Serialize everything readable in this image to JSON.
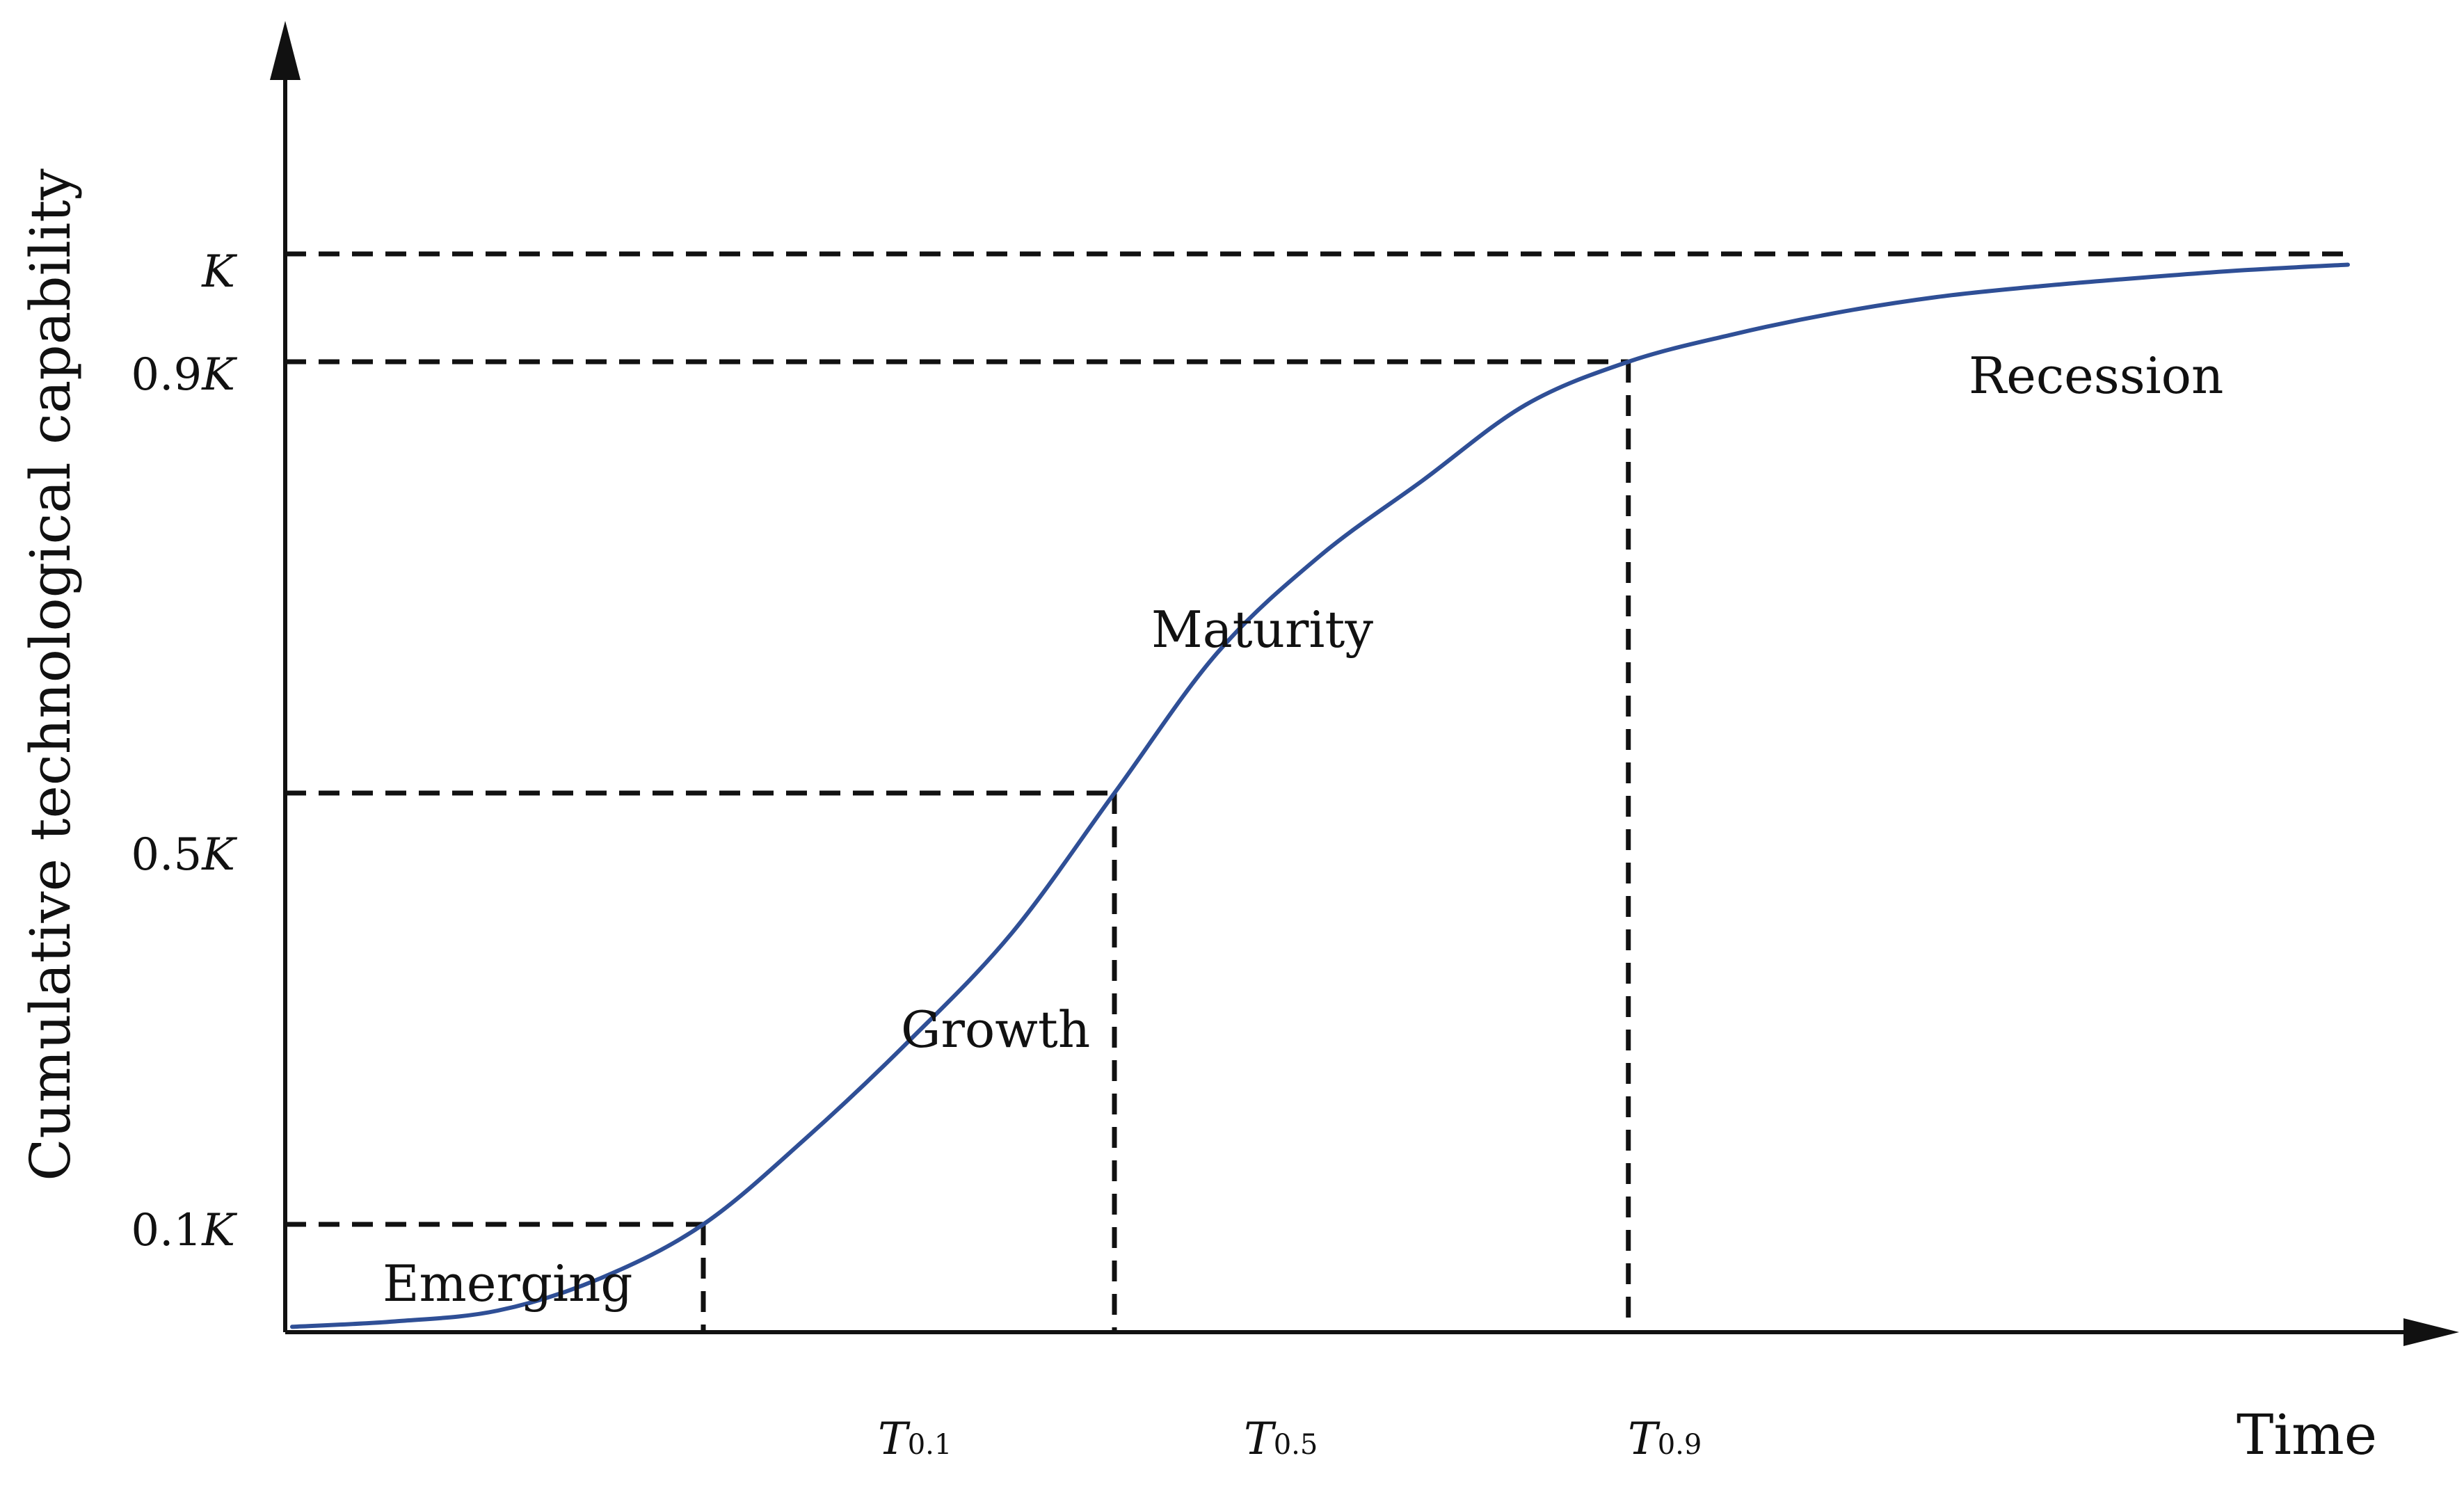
{
  "chart_data": {
    "type": "line",
    "title": "",
    "xlabel": "Time",
    "ylabel": "Cumulative technological capability",
    "y_ticks": [
      {
        "fraction": 1.0,
        "prefix": "",
        "symbol": "K"
      },
      {
        "fraction": 0.9,
        "prefix": "0.9",
        "symbol": "K"
      },
      {
        "fraction": 0.5,
        "prefix": "0.5",
        "symbol": "K"
      },
      {
        "fraction": 0.1,
        "prefix": "0.1",
        "symbol": "K"
      }
    ],
    "x_ticks": [
      {
        "symbol": "T",
        "sub": "0.1",
        "fraction": 0.1
      },
      {
        "symbol": "T",
        "sub": "0.5",
        "fraction": 0.5
      },
      {
        "symbol": "T",
        "sub": "0.9",
        "fraction": 0.9
      }
    ],
    "phases": [
      "Emerging",
      "Growth",
      "Maturity",
      "Recession"
    ],
    "series": [
      {
        "color": "#2f4f96",
        "y_fraction": [
          0.005,
          0.01,
          0.02,
          0.05,
          0.1,
          0.18,
          0.27,
          0.37,
          0.5,
          0.63,
          0.72,
          0.79,
          0.86,
          0.9,
          0.925,
          0.945,
          0.96,
          0.97,
          0.978,
          0.985,
          0.99
        ]
      }
    ],
    "grid": false,
    "legend": "none",
    "line_style": "dashed reference lines from tick values to curve"
  }
}
